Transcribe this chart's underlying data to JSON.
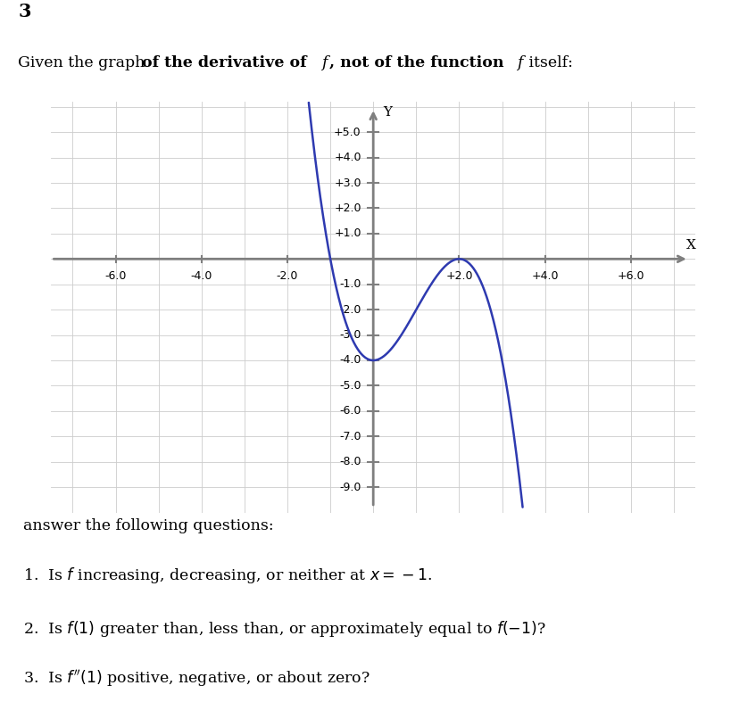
{
  "title_number": "3",
  "xlim": [
    -7.5,
    7.5
  ],
  "ylim": [
    -9.8,
    6.2
  ],
  "xticks": [
    -6.0,
    -4.0,
    -2.0,
    2.0,
    4.0,
    6.0
  ],
  "yticks": [
    -9.0,
    -8.0,
    -7.0,
    -6.0,
    -5.0,
    -4.0,
    -3.0,
    -2.0,
    -1.0,
    1.0,
    2.0,
    3.0,
    4.0,
    5.0
  ],
  "curve_color": "#2e3ab0",
  "axis_color": "#7f7f7f",
  "grid_color": "#cccccc",
  "background_color": "#ffffff",
  "fig_width": 8.2,
  "fig_height": 7.87,
  "question_color": "#333399"
}
